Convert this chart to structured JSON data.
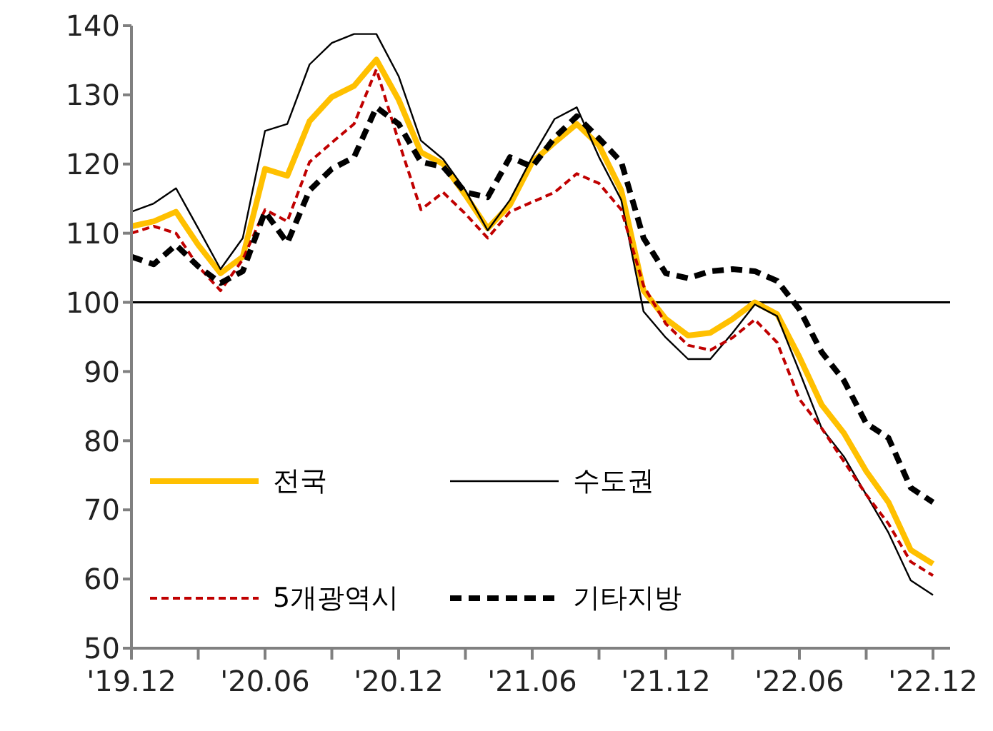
{
  "chart_data": {
    "type": "line",
    "categories": [
      "'19.12",
      null,
      null,
      null,
      null,
      null,
      "'20.06",
      null,
      null,
      null,
      null,
      null,
      "'20.12",
      null,
      null,
      null,
      null,
      null,
      "'21.06",
      null,
      null,
      null,
      null,
      null,
      "'21.12",
      null,
      null,
      null,
      null,
      null,
      "'22.06",
      null,
      null,
      null,
      null,
      null,
      "'22.12"
    ],
    "series": [
      {
        "name": "전국",
        "color": "#ffc000",
        "line_style": "solid",
        "values": [
          111,
          111.7,
          113.1,
          108.3,
          104.2,
          106.6,
          119.3,
          118.3,
          126.2,
          129.7,
          131.3,
          135.1,
          129.3,
          121.7,
          120,
          115.5,
          110.7,
          114.1,
          120.3,
          123.1,
          125.8,
          122.7,
          116.2,
          101.7,
          97.6,
          95.2,
          95.6,
          97.6,
          100,
          98.3,
          92.1,
          85.2,
          81.1,
          75.6,
          71.1,
          64.2,
          62.2
        ]
      },
      {
        "name": "수도권",
        "color": "#000000",
        "line_style": "solid",
        "values": [
          113.1,
          114.3,
          116.5,
          110.7,
          104.8,
          109.3,
          124.8,
          125.8,
          134.4,
          137.5,
          138.8,
          138.8,
          132.7,
          123.4,
          120.7,
          116.2,
          110.4,
          114.8,
          121,
          126.5,
          128.2,
          121,
          114.8,
          98.7,
          94.9,
          91.8,
          91.8,
          95.6,
          99.7,
          98,
          90,
          81.8,
          77.7,
          72.2,
          66.7,
          59.8,
          57.7
        ]
      },
      {
        "name": "5개광역시",
        "color": "#c00000",
        "line_style": "dashed",
        "values": [
          110,
          111,
          110,
          105.2,
          101.7,
          106.2,
          113.4,
          111.7,
          120.3,
          123.1,
          125.8,
          133.7,
          123.3,
          113.4,
          115.9,
          112.8,
          109.3,
          113.1,
          114.5,
          115.9,
          118.6,
          117.2,
          113.4,
          102.4,
          96.9,
          93.8,
          93.1,
          94.9,
          97.5,
          94.2,
          86,
          81.8,
          77,
          72.2,
          68,
          62.5,
          60.5
        ]
      },
      {
        "name": "기타지방",
        "color": "#000000",
        "line_style": "dashed",
        "values": [
          106.6,
          105.5,
          108.3,
          105.2,
          102.8,
          104.5,
          113.1,
          108.6,
          116.2,
          119.3,
          121,
          128.2,
          125.8,
          120.3,
          119.6,
          115.9,
          115.2,
          121,
          119.6,
          123.8,
          126.9,
          123.7,
          120.3,
          109.3,
          104.2,
          103.5,
          104.5,
          104.8,
          104.5,
          103.1,
          99,
          92.8,
          88.7,
          82.5,
          80.4,
          73.2,
          71.1
        ]
      }
    ],
    "ylim": [
      50,
      140
    ],
    "yticks": [
      50,
      60,
      70,
      80,
      90,
      100,
      110,
      120,
      130,
      140
    ],
    "ref_lines": [
      {
        "axis": "y",
        "value": 100,
        "color": "#000000"
      }
    ],
    "grid": false,
    "legend": "bottom left"
  }
}
